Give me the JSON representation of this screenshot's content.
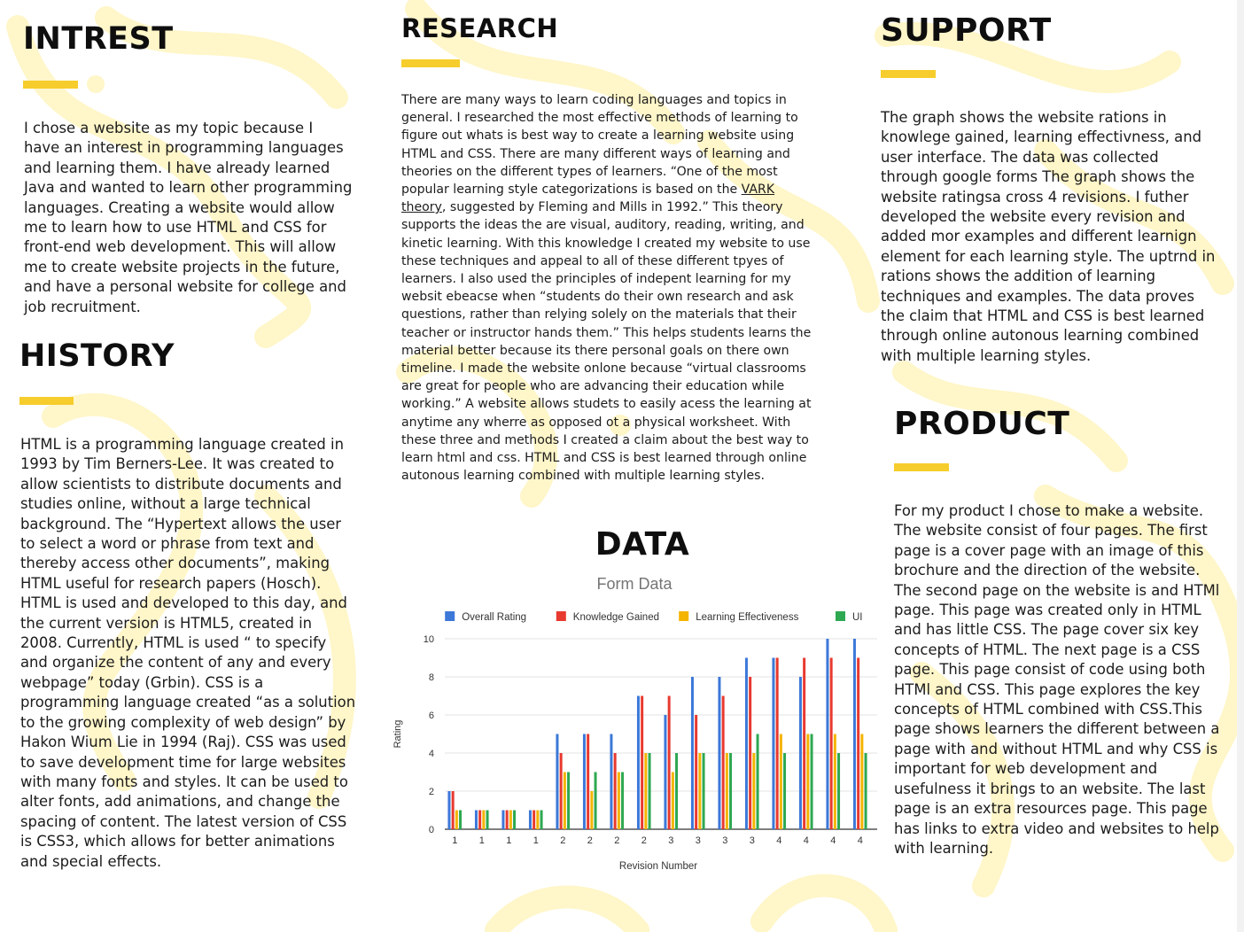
{
  "sections": {
    "interest": {
      "title": "INTREST",
      "body": " I chose a website as my topic because I\nhave an interest in programming languages\nand learning them. I have already learned\nJava and wanted to learn other programming\nlanguages. Creating a website would allow\nme to learn how to use HTML and CSS for\nfront-end web development. This will allow\nme to create website projects in the future,\nand have a personal website for college and\njob recruitment."
    },
    "history": {
      "title": "HISTORY",
      "body": "HTML is a programming language created in\n1993 by Tim Berners-Lee. It was created to\nallow scientists to distribute documents and\nstudies online, without a large technical\nbackground. The “Hypertext allows the user\nto select a word or phrase from text and\nthereby access other documents”, making\nHTML useful for research papers (Hosch).\nHTML is used and developed to this day, and\nthe current version is HTML5, created in\n2008. Currently, HTML is used “ to specify\nand organize the content of any and every\nwebpage” today (Grbin). CSS is a\nprogramming language created “as a solution\nto the growing complexity of web design” by\nHakon Wium Lie in 1994 (Raj). CSS was used\nto save development time for large websites\nwith many fonts and styles. It can be used to\nalter fonts, add animations, and change the\nspacing of content. The latest version of CSS\nis CSS3, which allows for better animations\nand special effects."
    },
    "research": {
      "title": "RESEARCH",
      "body_before_link": " There are many ways to learn coding languages and topics in\ngeneral. I researched the most effective methods of learning to\nfigure out whats is best way to create a learning website using\nHTML and CSS. There are many different ways of learning and\ntheories on the different types of learners. “One of the most\npopular learning style categorizations is based on the ",
      "link_text": "VARK\ntheory",
      "body_after_link": ", suggested by Fleming and Mills in 1992.” This theory\nsupports the ideas the are visual, auditory, reading, writing, and\nkinetic learning. With this knowledge I created my website to use\nthese techniques and appeal to all of these different tpyes of\nlearners. I also used the principles of indepent learning for my\nwebsit ebeacse when “students do their own research and ask\nquestions, rather than relying solely on the materials that their\nteacher or instructor hands them.” This helps students learns the\nmaterial better because its there personal goals on there own\ntimeline. I made the website onlone because “virtual classrooms\nare great for people who are advancing their education while\nworking.” A website allows studets to easily acess the learning at\nanytime any wherre as opposed ot a physical worksheet. With\nthese three and methods I created a claim about the best way to\nlearn html and css.  HTML and CSS is best learned through online\nautonous learning combined with multiple learning styles."
    },
    "data": {
      "title": "DATA"
    },
    "support": {
      "title": "SUPPORT",
      "body": "The graph shows the website rations in\nknowlege gained, learning effectivness, and\nuser interface. The data was collected\nthrough google forms The graph shows the\nwebsite ratingsa cross 4 revisions. I futher\ndeveloped the website every revision and\nadded mor examples and different learnign\nelement for each learning style. The uptrnd in\nrations shows the addition of learning\ntechniques and examples. The data proves\nthe claim that HTML and CSS is best learned\nthrough online autonous learning combined\nwith multiple learning styles."
    },
    "product": {
      "title": "PRODUCT",
      "body": " For my product I chose to make a website.\nThe website consist of four pages. The first\npage is a cover page with an image of this\nbrochure and the direction of the website.\nThe second page on the website is and HTMl\npage. This page was created only in HTML\nand has little CSS. The page cover six key\nconcepts of HTML. The next page is a CSS\npage. This page consist of code using both\nHTMl and CSS. This page explores the key\nconcepts of HTML combined with CSS.This\npage shows learners the different between a\npage with and without HTML and why CSS is\nimportant for web development and\nusefulness it brings to an website. The last\npage is an extra resources page. This page\nhas links to extra video and websites to help\nwith  learning."
    }
  },
  "colors": {
    "accent": "#f6cd2c",
    "background_shapes": "#fff6c9"
  },
  "chart_data": {
    "type": "bar",
    "title": "Form Data",
    "xlabel": "Revision Number",
    "ylabel": "Rating",
    "ylim": [
      0,
      10
    ],
    "yticks": [
      0,
      2,
      4,
      6,
      8,
      10
    ],
    "grid": true,
    "legend_position": "top",
    "categories": [
      "1",
      "1",
      "1",
      "1",
      "2",
      "2",
      "2",
      "2",
      "3",
      "3",
      "3",
      "3",
      "4",
      "4",
      "4",
      "4"
    ],
    "series": [
      {
        "name": "Overall Rating",
        "color": "#3c78d8",
        "values": [
          2,
          1,
          1,
          1,
          5,
          5,
          5,
          7,
          6,
          8,
          8,
          9,
          9,
          8,
          10,
          10
        ]
      },
      {
        "name": "Knowledge Gained",
        "color": "#e8392f",
        "values": [
          2,
          1,
          1,
          1,
          4,
          5,
          4,
          7,
          7,
          6,
          7,
          8,
          9,
          9,
          9,
          9
        ]
      },
      {
        "name": "Learning Effectiveness",
        "color": "#f4b400",
        "values": [
          1,
          1,
          1,
          1,
          3,
          2,
          3,
          4,
          3,
          4,
          4,
          4,
          5,
          5,
          5,
          5
        ]
      },
      {
        "name": "UI",
        "color": "#2ea851",
        "values": [
          1,
          1,
          1,
          1,
          3,
          3,
          3,
          4,
          4,
          4,
          4,
          5,
          4,
          5,
          4,
          4
        ]
      }
    ]
  }
}
